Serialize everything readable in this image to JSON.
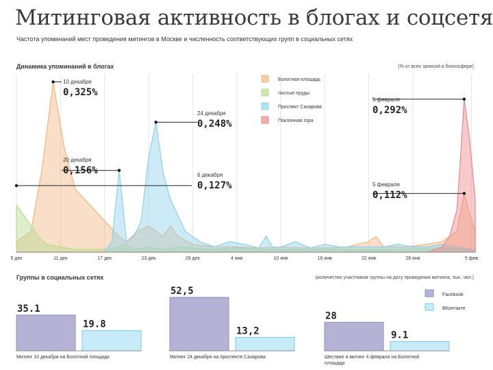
{
  "title": "Митинговая активность в блогах и соцсетях",
  "subtitle": "Частота упоминаний мест проведения митингов в Москве и численность соответствующих групп в социальных сетях",
  "chart_data": [
    {
      "type": "area",
      "title": "Динамика упоминаний в блогах",
      "unit": "(% от всех записей в блогосфере)",
      "x_ticks": [
        "5 дек",
        "11 дек",
        "17 дек",
        "23 дек",
        "29 дек",
        "4 янв",
        "10 янв",
        "16 янв",
        "22 янв",
        "28 янв",
        "5 фев"
      ],
      "ylim": [
        0,
        0.34
      ],
      "grid": true,
      "legend_position": "top-center",
      "series": [
        {
          "name": "Болотная площадь",
          "color": "#f2b782",
          "points": [
            [
              0,
              0.02
            ],
            [
              2,
              0.04
            ],
            [
              3.5,
              0.16
            ],
            [
              5,
              0.325
            ],
            [
              6.5,
              0.2
            ],
            [
              8,
              0.12
            ],
            [
              10,
              0.09
            ],
            [
              12,
              0.06
            ],
            [
              14,
              0.03
            ],
            [
              15,
              0.02
            ],
            [
              16.5,
              0.04
            ],
            [
              18,
              0.05
            ],
            [
              19,
              0.04
            ],
            [
              20,
              0.03
            ],
            [
              21,
              0.05
            ],
            [
              22,
              0.03
            ],
            [
              24,
              0.015
            ],
            [
              27,
              0.01
            ],
            [
              30,
              0.01
            ],
            [
              33,
              0.008
            ],
            [
              36,
              0.01
            ],
            [
              39,
              0.008
            ],
            [
              42,
              0.008
            ],
            [
              45,
              0.01
            ],
            [
              48,
              0.02
            ],
            [
              49,
              0.03
            ],
            [
              50,
              0.01
            ],
            [
              53,
              0.01
            ],
            [
              56,
              0.015
            ],
            [
              58,
              0.02
            ],
            [
              60,
              0.04
            ],
            [
              61,
              0.112
            ],
            [
              62,
              0.06
            ],
            [
              62.5,
              0.04
            ]
          ]
        },
        {
          "name": "Чистые пруды",
          "color": "#b9dc93",
          "points": [
            [
              0,
              0.09
            ],
            [
              1,
              0.07
            ],
            [
              2,
              0.05
            ],
            [
              3,
              0.03
            ],
            [
              4,
              0.015
            ],
            [
              6,
              0.01
            ],
            [
              8,
              0.005
            ],
            [
              12,
              0.005
            ],
            [
              14,
              0.01
            ],
            [
              15,
              0.015
            ],
            [
              16,
              0.005
            ],
            [
              18,
              0.01
            ],
            [
              20,
              0.005
            ],
            [
              22,
              0.01
            ],
            [
              26,
              0.005
            ],
            [
              30,
              0.008
            ],
            [
              34,
              0.005
            ],
            [
              40,
              0.005
            ],
            [
              46,
              0.005
            ],
            [
              52,
              0.005
            ],
            [
              58,
              0.008
            ],
            [
              62.5,
              0.005
            ]
          ]
        },
        {
          "name": "Проспект Сахарова",
          "color": "#8fd3ea",
          "points": [
            [
              0,
              0
            ],
            [
              12,
              0
            ],
            [
              13,
              0.02
            ],
            [
              14,
              0.156
            ],
            [
              15,
              0.02
            ],
            [
              16,
              0.03
            ],
            [
              17,
              0.06
            ],
            [
              18,
              0.18
            ],
            [
              19,
              0.248
            ],
            [
              20,
              0.15
            ],
            [
              21,
              0.1
            ],
            [
              22,
              0.07
            ],
            [
              23,
              0.04
            ],
            [
              24,
              0.03
            ],
            [
              25,
              0.02
            ],
            [
              26,
              0.015
            ],
            [
              27,
              0.01
            ],
            [
              29,
              0.02
            ],
            [
              31,
              0.015
            ],
            [
              33,
              0.008
            ],
            [
              34,
              0.03
            ],
            [
              35,
              0.008
            ],
            [
              36,
              0.01
            ],
            [
              38,
              0.02
            ],
            [
              40,
              0.008
            ],
            [
              42,
              0.015
            ],
            [
              44,
              0.01
            ],
            [
              46,
              0.01
            ],
            [
              48,
              0.01
            ],
            [
              50,
              0.01
            ],
            [
              52,
              0.015
            ],
            [
              54,
              0.01
            ],
            [
              56,
              0.01
            ],
            [
              58,
              0.015
            ],
            [
              60,
              0.01
            ],
            [
              62.5,
              0.005
            ]
          ]
        },
        {
          "name": "Поклонная гора",
          "color": "#ee8a8e",
          "points": [
            [
              0,
              0
            ],
            [
              56,
              0
            ],
            [
              58,
              0.01
            ],
            [
              59,
              0.03
            ],
            [
              60,
              0.08
            ],
            [
              60.5,
              0.18
            ],
            [
              61,
              0.292
            ],
            [
              61.7,
              0.22
            ],
            [
              62.5,
              0.1
            ]
          ]
        }
      ],
      "annotations": [
        {
          "date": "10 декабря",
          "value": "0,325%"
        },
        {
          "date": "20 декабря",
          "value": "0,156%"
        },
        {
          "date": "24 декабря",
          "value": "0,248%"
        },
        {
          "date": "6 декабря",
          "value": "0,127%"
        },
        {
          "date": "5 февраля",
          "value": "0,292%"
        },
        {
          "date": "5 февраля",
          "value": "0,112%"
        }
      ]
    },
    {
      "type": "bar",
      "title": "Группы в социальных сетях",
      "unit": "(количество участников группы на дату проведения митинга, тыс. чел.)",
      "ylim": [
        0,
        52.5
      ],
      "legend_position": "top-right",
      "series": [
        {
          "name": "Facebook",
          "color": "#b4b3d6",
          "values": [
            35.1,
            52.5,
            28
          ]
        },
        {
          "name": "ВКонтакте",
          "color": "#c7ebf8",
          "values": [
            19.8,
            13.2,
            9.1
          ]
        }
      ],
      "value_labels": [
        [
          "35.1",
          "19.8"
        ],
        [
          "52,5",
          "13,2"
        ],
        [
          "28",
          "9.1"
        ]
      ],
      "categories": [
        "Митинг 10 декабря на Болотной площади",
        "Митинг 24 декабря на проспекте Сахарова",
        "Шествие и митинг 4 февраля на Болотной площади"
      ]
    }
  ]
}
